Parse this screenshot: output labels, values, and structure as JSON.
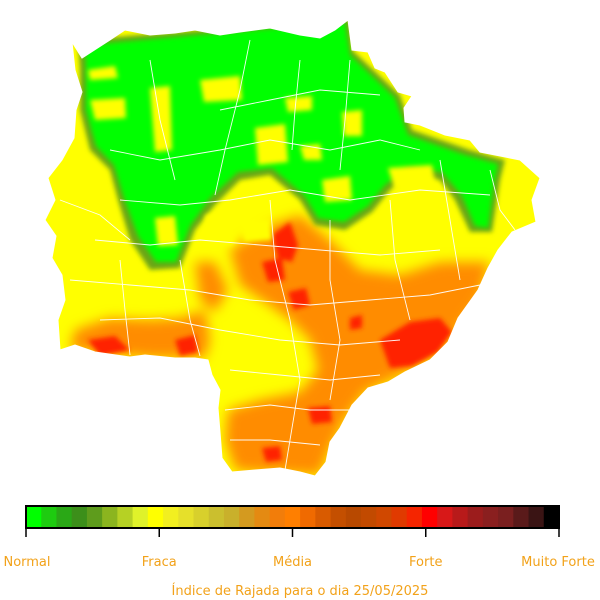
{
  "caption": "Índice de Rajada para o dia 25/05/2025",
  "scale": {
    "categories": [
      "Normal",
      "Fraca",
      "Média",
      "Forte",
      "Muito Forte"
    ],
    "colors": [
      "#00ff00",
      "#1ecc10",
      "#2aa816",
      "#3c8f1a",
      "#5e9c1c",
      "#8bb51f",
      "#b6d124",
      "#dff22a",
      "#ffff00",
      "#f2ef20",
      "#e6e02a",
      "#d8d02c",
      "#cbbf2e",
      "#c9b02b",
      "#d49a1f",
      "#e48a12",
      "#f27d0a",
      "#ff7f00",
      "#f06a00",
      "#d95b00",
      "#c44f00",
      "#b84900",
      "#c24a00",
      "#d04800",
      "#e03a00",
      "#f52500",
      "#ff0000",
      "#d81818",
      "#b81a1a",
      "#9c1c1c",
      "#8a1f1f",
      "#7a1f1f",
      "#5a1a1a",
      "#3a1414",
      "#000000"
    ]
  },
  "map": {
    "region": "Mato Grosso do Sul",
    "colors": {
      "normal": "#00ff00",
      "fraca": "#ffff00",
      "media": "#ff8c00",
      "forte": "#ff2200",
      "border": "#ffffff",
      "halo": "#6aa518"
    }
  }
}
